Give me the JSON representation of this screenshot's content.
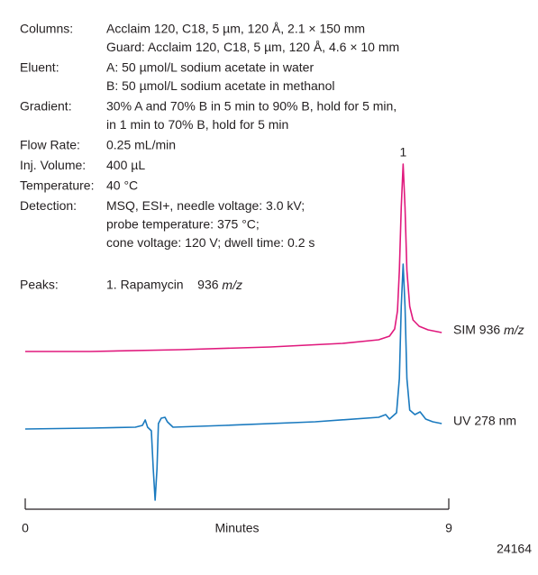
{
  "chart_data": {
    "type": "line",
    "conditions": [
      {
        "label": "Columns:",
        "lines": [
          "Acclaim 120, C18, 5 µm, 120 Å, 2.1 × 150 mm",
          "Guard: Acclaim 120, C18, 5 µm, 120 Å, 4.6 × 10 mm"
        ]
      },
      {
        "label": "Eluent:",
        "lines": [
          "A: 50 µmol/L sodium acetate in water",
          "B: 50 µmol/L sodium acetate in methanol"
        ]
      },
      {
        "label": "Gradient:",
        "lines": [
          "30% A and 70% B in 5 min to 90% B, hold for 5 min,",
          "in 1 min to 70% B, hold for 5 min"
        ]
      },
      {
        "label": "Flow Rate:",
        "lines": [
          "0.25 mL/min"
        ]
      },
      {
        "label": "Inj. Volume:",
        "lines": [
          "400 µL"
        ]
      },
      {
        "label": "Temperature:",
        "lines": [
          "40 °C"
        ]
      },
      {
        "label": "Detection:",
        "lines": [
          "MSQ, ESI+, needle voltage: 3.0 kV;",
          "probe temperature: 375 °C;",
          "cone voltage: 120 V; dwell time: 0.2 s"
        ]
      }
    ],
    "peaks": {
      "label": "Peaks:",
      "lines": [
        "1. Rapamycin    936 m/z"
      ]
    },
    "xlabel": "Minutes",
    "xlim": [
      0,
      9
    ],
    "xticks": [
      0,
      9
    ],
    "ylim": [
      0,
      400
    ],
    "annotations": [
      {
        "text": "1",
        "x": 8.03
      }
    ],
    "figure_id": "24164",
    "series": [
      {
        "name": "SIM 936 m/z",
        "color": "#e0197d",
        "x": [
          0,
          1.38,
          3.29,
          5.21,
          6.74,
          7.51,
          7.74,
          7.85,
          7.91,
          7.95,
          7.99,
          8.03,
          8.07,
          8.11,
          8.17,
          8.24,
          8.37,
          8.56,
          8.85
        ],
        "values": [
          173,
          173,
          175,
          178,
          182,
          186,
          190,
          198,
          218,
          263,
          333,
          381,
          333,
          263,
          223,
          208,
          201,
          197,
          194
        ]
      },
      {
        "name": "UV 278 nm",
        "color": "#1a7abf",
        "x": [
          0,
          1.38,
          2.34,
          2.49,
          2.55,
          2.6,
          2.68,
          2.72,
          2.76,
          2.8,
          2.83,
          2.89,
          2.97,
          3.02,
          3.14,
          4.25,
          6.16,
          7.51,
          7.66,
          7.74,
          7.89,
          7.95,
          7.99,
          8.03,
          8.07,
          8.11,
          8.17,
          8.28,
          8.39,
          8.51,
          8.66,
          8.85
        ],
        "values": [
          87,
          88,
          89,
          91,
          97,
          89,
          85,
          43,
          8,
          43,
          93,
          99,
          100,
          95,
          89,
          91,
          95,
          100,
          103,
          98,
          105,
          143,
          223,
          270,
          223,
          143,
          108,
          103,
          106,
          98,
          95,
          93
        ]
      }
    ]
  }
}
